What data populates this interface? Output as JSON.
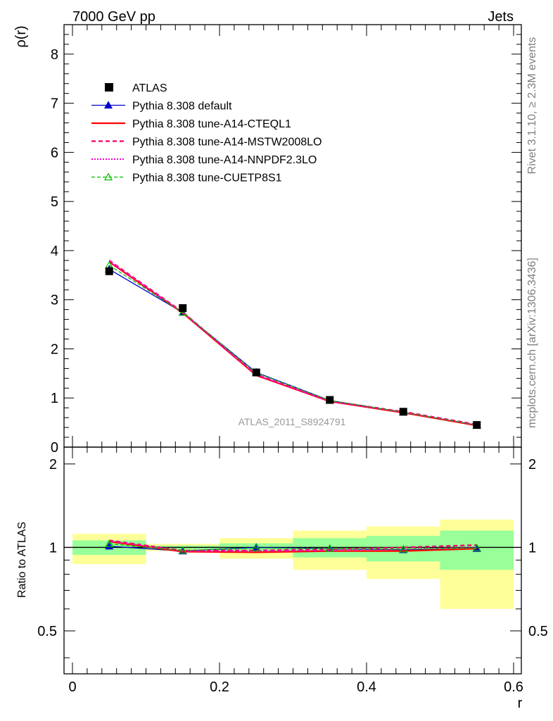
{
  "header": {
    "left": "7000 GeV pp",
    "right": "Jets"
  },
  "side_texts": {
    "rivet": "Rivet 3.1.10, ≥ 2.3M events",
    "mcplots": "mcplots.cern.ch [arXiv:1306.3436]"
  },
  "watermark": "ATLAS_2011_S8924791",
  "colors": {
    "data": "#000000",
    "default": "#0000cc",
    "cteql1": "#ff0000",
    "mstw": "#ee0066",
    "nnpdf": "#ff00cc",
    "cuetp": "#00bb00",
    "band_inner": "#99ff99",
    "band_outer": "#ffff99"
  },
  "chart_data": [
    {
      "type": "line",
      "panel": "main",
      "ylabel": "ρ(r)",
      "xlim": [
        0,
        0.6
      ],
      "ylim": [
        0,
        8.6
      ],
      "yticks": [
        0,
        1,
        2,
        3,
        4,
        5,
        6,
        7,
        8
      ],
      "legend_position": "top-left",
      "x": [
        0.05,
        0.15,
        0.25,
        0.35,
        0.45,
        0.55
      ],
      "series": [
        {
          "name": "ATLAS",
          "key": "data",
          "values": [
            3.58,
            2.83,
            1.52,
            0.96,
            0.72,
            0.45
          ]
        },
        {
          "name": "Pythia 8.308 default",
          "key": "default",
          "values": [
            3.62,
            2.74,
            1.52,
            0.95,
            0.71,
            0.44
          ]
        },
        {
          "name": "Pythia 8.308 tune-A14-CTEQL1",
          "key": "cteql1",
          "values": [
            3.77,
            2.73,
            1.46,
            0.93,
            0.7,
            0.44
          ]
        },
        {
          "name": "Pythia 8.308 tune-A14-MSTW2008LO",
          "key": "mstw",
          "values": [
            3.8,
            2.75,
            1.48,
            0.94,
            0.72,
            0.46
          ]
        },
        {
          "name": "Pythia 8.308 tune-A14-NNPDF2.3LO",
          "key": "nnpdf",
          "values": [
            3.78,
            2.74,
            1.47,
            0.93,
            0.71,
            0.45
          ]
        },
        {
          "name": "Pythia 8.308 tune-CUETP8S1",
          "key": "cuetp",
          "values": [
            3.7,
            2.74,
            1.51,
            0.95,
            0.71,
            0.45
          ]
        }
      ]
    },
    {
      "type": "line",
      "panel": "ratio",
      "xlabel": "r",
      "ylabel": "Ratio to ATLAS",
      "xlim": [
        0,
        0.6
      ],
      "ylim": [
        0.35,
        2.3
      ],
      "xticks": [
        "0",
        "0.2",
        "0.4",
        "0.6"
      ],
      "yticks": [
        "0.5",
        "1",
        "2"
      ],
      "x": [
        0.05,
        0.15,
        0.25,
        0.35,
        0.45,
        0.55
      ],
      "bins": [
        [
          0,
          0.1
        ],
        [
          0.1,
          0.2
        ],
        [
          0.2,
          0.3
        ],
        [
          0.3,
          0.4
        ],
        [
          0.4,
          0.5
        ],
        [
          0.5,
          0.6
        ]
      ],
      "band_inner": [
        [
          0.94,
          1.06
        ],
        [
          0.985,
          1.015
        ],
        [
          0.965,
          1.035
        ],
        [
          0.92,
          1.08
        ],
        [
          0.89,
          1.1
        ],
        [
          0.83,
          1.15
        ]
      ],
      "band_outer": [
        [
          0.87,
          1.12
        ],
        [
          0.97,
          1.03
        ],
        [
          0.91,
          1.08
        ],
        [
          0.83,
          1.15
        ],
        [
          0.77,
          1.19
        ],
        [
          0.6,
          1.26
        ]
      ],
      "series": [
        {
          "name": "Pythia 8.308 default",
          "key": "default",
          "values": [
            1.01,
            0.97,
            1.0,
            0.99,
            0.98,
            0.99
          ]
        },
        {
          "name": "Pythia 8.308 tune-A14-CTEQL1",
          "key": "cteql1",
          "values": [
            1.05,
            0.965,
            0.96,
            0.97,
            0.97,
            0.99
          ]
        },
        {
          "name": "Pythia 8.308 tune-A14-MSTW2008LO",
          "key": "mstw",
          "values": [
            1.06,
            0.975,
            0.975,
            0.985,
            1.0,
            1.02
          ]
        },
        {
          "name": "Pythia 8.308 tune-A14-NNPDF2.3LO",
          "key": "nnpdf",
          "values": [
            1.055,
            0.97,
            0.97,
            0.975,
            0.985,
            1.0
          ]
        },
        {
          "name": "Pythia 8.308 tune-CUETP8S1",
          "key": "cuetp",
          "values": [
            1.03,
            0.975,
            0.995,
            0.99,
            0.985,
            0.995
          ]
        }
      ]
    }
  ]
}
